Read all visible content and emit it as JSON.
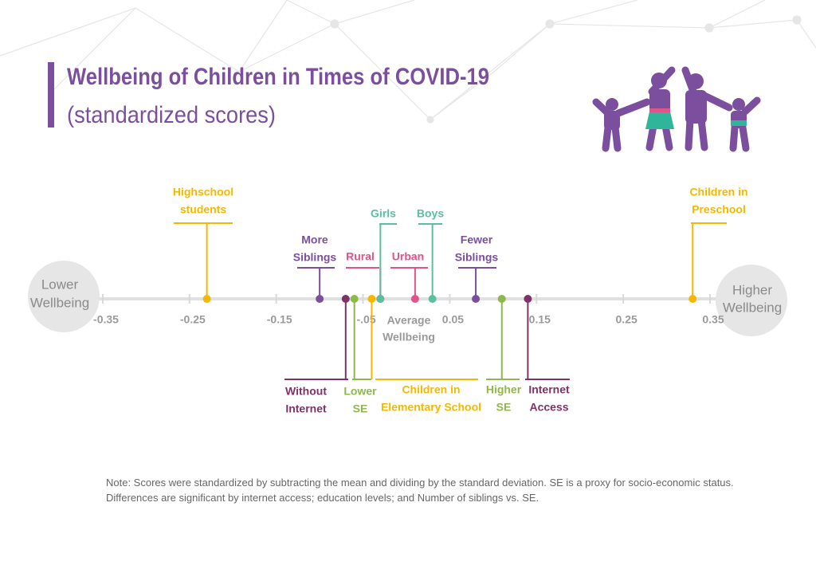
{
  "chart_data": {
    "type": "dotline",
    "title": "Wellbeing of Children in Times of COVID-19",
    "subtitle": "(standardized scores)",
    "left_end_label": [
      "Lower",
      "Wellbeing"
    ],
    "right_end_label": [
      "Higher",
      "Wellbeing"
    ],
    "center_label": [
      "Average",
      "Wellbeing"
    ],
    "xlim": [
      -0.35,
      0.35
    ],
    "xticks": [
      {
        "value": -0.35,
        "label": "-0.35"
      },
      {
        "value": -0.25,
        "label": "-0.25"
      },
      {
        "value": -0.15,
        "label": "-0.15"
      },
      {
        "value": -0.05,
        "label": "-.05"
      },
      0.05,
      0.15,
      0.25,
      0.35
    ],
    "points": [
      {
        "label": [
          "Highschool",
          "students"
        ],
        "value": -0.23,
        "color": "#f5b800"
      },
      {
        "label": [
          "More",
          "Siblings"
        ],
        "value": -0.1,
        "color": "#7b4f9e"
      },
      {
        "label": [
          "Without",
          "Internet"
        ],
        "value": -0.07,
        "color": "#7e3268"
      },
      {
        "label": [
          "Lower",
          "SE"
        ],
        "value": -0.06,
        "color": "#8fb84c"
      },
      {
        "label": [
          "Children in",
          "Elementary School"
        ],
        "value": -0.04,
        "color": "#f5b800"
      },
      {
        "label": [
          "Rural"
        ],
        "value": -0.03,
        "color": "#e2538a"
      },
      {
        "label": [
          "Girls"
        ],
        "value": -0.03,
        "color": "#5cbf9b"
      },
      {
        "label": [
          "Urban"
        ],
        "value": 0.01,
        "color": "#e2538a"
      },
      {
        "label": [
          "Boys"
        ],
        "value": 0.03,
        "color": "#5cbf9b"
      },
      {
        "label": [
          "Fewer",
          "Siblings"
        ],
        "value": 0.08,
        "color": "#7b4f9e"
      },
      {
        "label": [
          "Higher",
          "SE"
        ],
        "value": 0.11,
        "color": "#8fb84c"
      },
      {
        "label": [
          "Internet",
          "Access"
        ],
        "value": 0.14,
        "color": "#7e3268"
      },
      {
        "label": [
          "Children in",
          "Preschool"
        ],
        "value": 0.33,
        "color": "#f5b800"
      }
    ],
    "note": "Note: Scores were standardized by subtracting the mean and dividing by the standard deviation. SE is a proxy for socio-economic status. Differences are significant by internet access; education levels; and Number of siblings vs. SE."
  }
}
